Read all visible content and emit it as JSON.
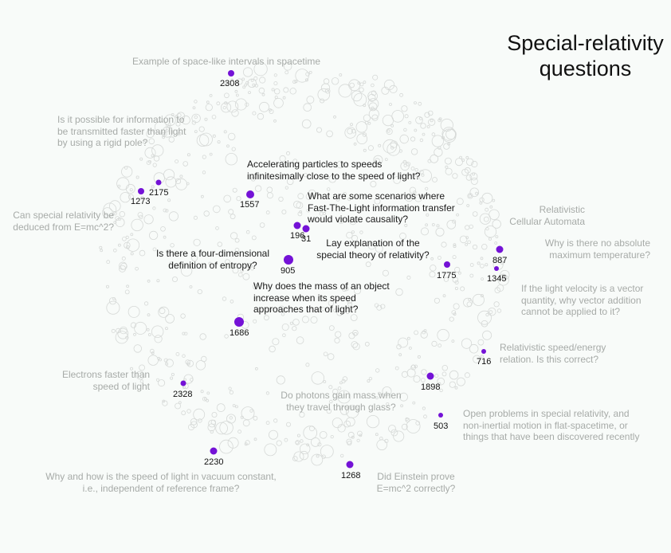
{
  "title": "Special-relativity\nquestions",
  "colors": {
    "dot": "#7412d6",
    "dark_text": "#1a1a1a",
    "muted_text": "#a7aba8",
    "bubble_stroke": "#d6d9d7",
    "background": "#f8fbf9"
  },
  "questions": [
    {
      "id": "2308",
      "text": "Example of space-like intervals in spacetime"
    },
    {
      "id": "2175",
      "text": "Is it possible for information to\nbe transmitted faster than light\nby using a rigid pole?"
    },
    {
      "id": "1273",
      "text": "Can special relativity be\ndeduced from E=mc^2?"
    },
    {
      "id": "1557",
      "text": "Accelerating particles to speeds\ninfinitesimally close to the speed of light?"
    },
    {
      "id": "196",
      "text": "What are some scenarios where\nFast-The-Light information transfer\nwould violate causality?"
    },
    {
      "id": "31",
      "text": ""
    },
    {
      "id": "905",
      "text": "Is there a four-dimensional\ndefinition of entropy?"
    },
    {
      "id": "1775",
      "text": "Lay explanation of the\nspecial theory of relativity?"
    },
    {
      "id": "1686",
      "text": "Why does the mass of an object\nincrease when its speed\napproaches that of light?"
    },
    {
      "id": "887",
      "text": "Relativistic\nCellular Automata"
    },
    {
      "id": "1345",
      "text": "Why is there no absolute\nmaximum temperature?"
    },
    {
      "id": "x1",
      "text": "If the light velocity is a vector\nquantity, why vector addition\ncannot be applied to it?"
    },
    {
      "id": "716",
      "text": "Relativistic speed/energy\nrelation. Is this correct?"
    },
    {
      "id": "2328",
      "text": "Electrons faster than\nspeed of light"
    },
    {
      "id": "1898",
      "text": "Do photons gain mass when\nthey travel through glass?"
    },
    {
      "id": "503",
      "text": "Open problems in special relativity, and\nnon-inertial motion in flat-spacetime, or\nthings that have been discovered recently"
    },
    {
      "id": "2230",
      "text": "Why and how is the speed of light in vacuum constant,\ni.e., independent of reference frame?"
    },
    {
      "id": "1268",
      "text": "Did Einstein prove\nE=mc^2 correctly?"
    }
  ]
}
